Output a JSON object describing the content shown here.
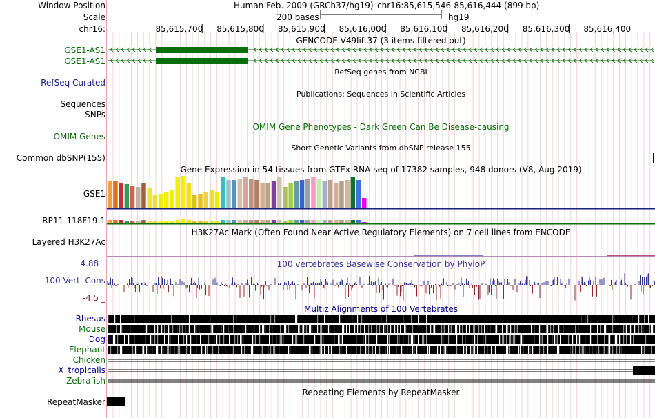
{
  "header": {
    "window_position_label": "Window Position",
    "scale_label": "Scale",
    "chrom_label": "chr16:",
    "assembly": "Human Feb. 2009 (GRCh37/hg19)",
    "position": "chr16:85,615,546-85,616,444 (899 bp)",
    "scale_text": "200 bases",
    "scale_db": "hg19",
    "ruler_ticks": [
      "85,615,700",
      "85,615,800",
      "85,615,900",
      "85,616,000",
      "85,616,100",
      "85,616,200",
      "85,616,300",
      "85,616,400"
    ]
  },
  "tracks": {
    "gencode": {
      "title": "GENCODE V49lift37 (3 items filtered out)",
      "items": [
        "GSE1-AS1",
        "GSE1-AS1"
      ]
    },
    "refseq": {
      "title": "RefSeq genes from NCBI",
      "label": "RefSeq Curated"
    },
    "publications": {
      "title": "Publications: Sequences in Scientific Articles",
      "labels": [
        "Sequences",
        "SNPs"
      ]
    },
    "omim": {
      "title": "OMIM Gene Phenotypes - Dark Green Can Be Disease-causing",
      "label": "OMIM Genes"
    },
    "dbsnp": {
      "title": "Short Genetic Variants from dbSNP release 155",
      "label": "Common dbSNP(155)"
    },
    "gtex": {
      "title": "Gene Expression in 54 tissues from GTEx RNA-seq of 17382 samples, 948 donors (V8, Aug 2019)",
      "genes": [
        "GSE1",
        "RP11-118F19.1"
      ]
    },
    "h3k27ac": {
      "title": "H3K27Ac Mark (Often Found Near Active Regulatory Elements) on 7 cell lines from ENCODE",
      "label": "Layered H3K27Ac"
    },
    "cons": {
      "title": "100 vertebrates Basewise Conservation by PhyloP",
      "label": "100 Vert. Cons",
      "max": "4.88 _",
      "min": "-4.5 _"
    },
    "multiz": {
      "title": "Multiz Alignments of 100 Vertebrates",
      "species": [
        "Rhesus",
        "Mouse",
        "Dog",
        "Elephant",
        "Chicken",
        "X_tropicalis",
        "Zebrafish"
      ]
    },
    "repeatmasker": {
      "title": "Repeating Elements by RepeatMasker",
      "label": "RepeatMasker"
    }
  },
  "colors": {
    "gene_green": "#0a6e0a",
    "navy": "#1a1f80",
    "cons_pos": "#343494",
    "cons_neg": "#8b2a2a",
    "grid": "#e9c9c9"
  },
  "gtex_colors": [
    "#f0a040",
    "#e07020",
    "#c03030",
    "#2f9d5e",
    "#d06050",
    "#c0b0a0",
    "#a06040",
    "#efe040",
    "#e8e040",
    "#f0f000",
    "#f0f000",
    "#f0f000",
    "#f0f000",
    "#f0f000",
    "#f0e020",
    "#e0c020",
    "#e8c020",
    "#f0d040",
    "#e8e040",
    "#e8f000",
    "#30c0c0",
    "#a0c0d0",
    "#6090c0",
    "#d0c0b0",
    "#d0a8a0",
    "#c09080",
    "#b08060",
    "#d0b090",
    "#c0a080",
    "#8040a0",
    "#d0c0b0",
    "#b0c060",
    "#a0d040",
    "#60a0a0",
    "#4060d0",
    "#a0a0a0",
    "#f0a0c0",
    "#c0f0b0",
    "#a0b0c0",
    "#c0a090",
    "#d0b090",
    "#b0a090",
    "#d0b8a0",
    "#107030",
    "#4070e0",
    "#f000f0"
  ],
  "gtex_heights": [
    38,
    38,
    36,
    34,
    32,
    30,
    36,
    28,
    18,
    20,
    22,
    26,
    44,
    46,
    36,
    18,
    20,
    22,
    26,
    22,
    44,
    40,
    40,
    42,
    44,
    42,
    40,
    36,
    36,
    38,
    44,
    30,
    36,
    38,
    40,
    42,
    44,
    42,
    38,
    40,
    36,
    38,
    40,
    44,
    40,
    14
  ]
}
